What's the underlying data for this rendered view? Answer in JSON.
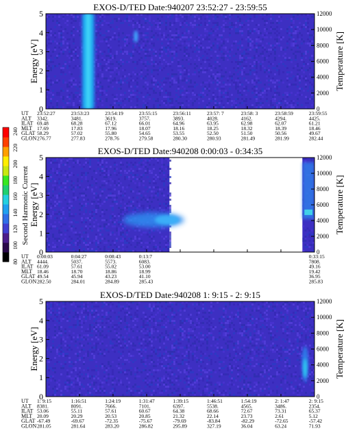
{
  "colorbar": {
    "label": "Second Harmonic Current",
    "ticks": [
      "80",
      "100",
      "120",
      "140",
      "160",
      "180",
      "200",
      "220",
      "240"
    ],
    "colors": [
      "#000000",
      "#2a0a4a",
      "#4b1d8a",
      "#3f3fd0",
      "#2f6fe8",
      "#1fa0f0",
      "#23d0e0",
      "#1fd070",
      "#37e820",
      "#c8e810",
      "#ffee00",
      "#ffa000",
      "#ff4000",
      "#ff0000"
    ]
  },
  "chart_data": [
    {
      "type": "heatmap",
      "title": "EXOS-D/TED   Date:940207  23:52:27 - 23:59:55",
      "ylabel": "Energy [eV]",
      "y2label": "Temperature [K]",
      "ylim": [
        0,
        5
      ],
      "y2lim": [
        0,
        12000
      ],
      "yticks": [
        "0",
        "1",
        "2",
        "3",
        "4",
        "5"
      ],
      "y2ticks": [
        "0",
        "2000",
        "4000",
        "6000",
        "8000",
        "10000",
        "12000"
      ],
      "data_extent": [
        0,
        1
      ],
      "background_color": "#3d2fc2",
      "features": [
        {
          "kind": "band",
          "x_from": 0.135,
          "x_to": 0.18,
          "color": "#1ea6ee",
          "core": "#40d4f8"
        },
        {
          "kind": "blob",
          "x": 0.335,
          "y": 3.8,
          "color": "#40a8ff"
        }
      ],
      "table": {
        "rows": [
          {
            "label": "UT",
            "values": [
              "23:52:27",
              "23:53:23",
              "23:54:19",
              "23:55:15",
              "23:56:11",
              "23:57: 7",
              "23:58: 3",
              "23:58:59",
              "23:59:55"
            ]
          },
          {
            "label": "ALT",
            "values": [
              "3342.",
              "3481.",
              "3619.",
              "3757.",
              "3893.",
              "4028.",
              "4162.",
              "4294.",
              "4425."
            ]
          },
          {
            "label": "ILAT",
            "values": [
              "69.48",
              "68.28",
              "67.12",
              "66.01",
              "64.96",
              "63.95",
              "62.98",
              "62.07",
              "61.21"
            ]
          },
          {
            "label": "MLT",
            "values": [
              "17.69",
              "17.83",
              "17.96",
              "18.07",
              "18.16",
              "18.25",
              "18.32",
              "18.39",
              "18.46"
            ]
          },
          {
            "label": "GLAT",
            "values": [
              "58.29",
              "57.02",
              "55.80",
              "54.65",
              "53.55",
              "52.50",
              "51.50",
              "50.56",
              "49.67"
            ]
          },
          {
            "label": "GLON",
            "values": [
              "276.77",
              "277.83",
              "278.76",
              "279.58",
              "280.30",
              "280.93",
              "281.49",
              "281.99",
              "282.44"
            ]
          }
        ]
      }
    },
    {
      "type": "heatmap",
      "title": "EXOS-D/TED   Date:940208  0:00:03 - 0:34:35",
      "ylabel": "Energy [eV]",
      "y2label": "Temperature [K]",
      "ylim": [
        0,
        5
      ],
      "y2lim": [
        0,
        12000
      ],
      "yticks": [
        "0",
        "1",
        "2",
        "3",
        "4",
        "5"
      ],
      "y2ticks": [
        "0",
        "2000",
        "4000",
        "6000",
        "8000",
        "10000",
        "12000"
      ],
      "data_extent": [
        0,
        0.46
      ],
      "data_extent2": [
        0.955,
        1
      ],
      "background_color": "#3d2fc2",
      "features": [
        {
          "kind": "blob",
          "x": 0.4,
          "y": 1.7,
          "color": "#2e8ef0"
        },
        {
          "kind": "strip",
          "x_from": 0.955,
          "x_to": 1.0,
          "color": "#2f7ce8"
        }
      ],
      "table": {
        "rows": [
          {
            "label": "UT",
            "values": [
              "0:00:03",
              "0:04:27",
              "0:08:43",
              "0:13:7",
              "",
              "",
              "",
              "",
              "0:33:15"
            ]
          },
          {
            "label": "ALT",
            "values": [
              "4444.",
              "5037.",
              "5573.",
              "6083.",
              "",
              "",
              "",
              "",
              "7808."
            ]
          },
          {
            "label": "ILAT",
            "values": [
              "61.09",
              "57.61",
              "55.02",
              "53.00",
              "",
              "",
              "",
              "",
              "49.16"
            ]
          },
          {
            "label": "MLT",
            "values": [
              "18.46",
              "18.70",
              "18.86",
              "18.99",
              "",
              "",
              "",
              "",
              "19.42"
            ]
          },
          {
            "label": "GLAT",
            "values": [
              "49.54",
              "45.94",
              "43.23",
              "41.10",
              "",
              "",
              "",
              "",
              "36.95"
            ]
          },
          {
            "label": "GLON",
            "values": [
              "282.50",
              "284.01",
              "284.89",
              "285.43",
              "",
              "",
              "",
              "",
              "285.83"
            ]
          }
        ]
      }
    },
    {
      "type": "heatmap",
      "title": "EXOS-D/TED   Date:940208  1: 9:15 - 2: 9:15",
      "ylabel": "Energy [eV]",
      "y2label": "Temperature [K]",
      "ylim": [
        0,
        5
      ],
      "y2lim": [
        0,
        12000
      ],
      "yticks": [
        "0",
        "1",
        "2",
        "3",
        "4",
        "5"
      ],
      "y2ticks": [
        "0",
        "2000",
        "4000",
        "6000",
        "8000",
        "10000",
        "12000"
      ],
      "data_extent": [
        0,
        1
      ],
      "background_color": "#3d2fc2",
      "features": [
        {
          "kind": "streak",
          "x": 0.965,
          "y": 1.5,
          "color": "#2fd0f0"
        }
      ],
      "table": {
        "rows": [
          {
            "label": "UT",
            "values": [
              "1: 9:15",
              "1:16:51",
              "1:24:19",
              "1:31:47",
              "1:39:15",
              "1:46:51",
              "1:54:19",
              "2: 1:47",
              "2: 9:15"
            ]
          },
          {
            "label": "ALT",
            "values": [
              "8381.",
              "8091.",
              "7666.",
              "7101.",
              "6397.",
              "5538.",
              "4565.",
              "3486.",
              "2354."
            ]
          },
          {
            "label": "ILAT",
            "values": [
              "53.06",
              "55.11",
              "57.61",
              "60.67",
              "64.38",
              "68.66",
              "72.67",
              "73.31",
              "65.37"
            ]
          },
          {
            "label": "MLT",
            "values": [
              "20.09",
              "20.29",
              "20.53",
              "20.85",
              "21.32",
              "22.14",
              "23.73",
              "2.61",
              "5.12"
            ]
          },
          {
            "label": "GLAT",
            "values": [
              "-67.49",
              "-69.67",
              "-72.35",
              "-75.67",
              "-79.69",
              "-83.84",
              "-82.29",
              "-72.65",
              "-57.42"
            ]
          },
          {
            "label": "GLON",
            "values": [
              "281.05",
              "281.64",
              "283.20",
              "286.82",
              "295.89",
              "327.19",
              "36.04",
              "63.24",
              "71.93"
            ]
          }
        ]
      }
    }
  ]
}
